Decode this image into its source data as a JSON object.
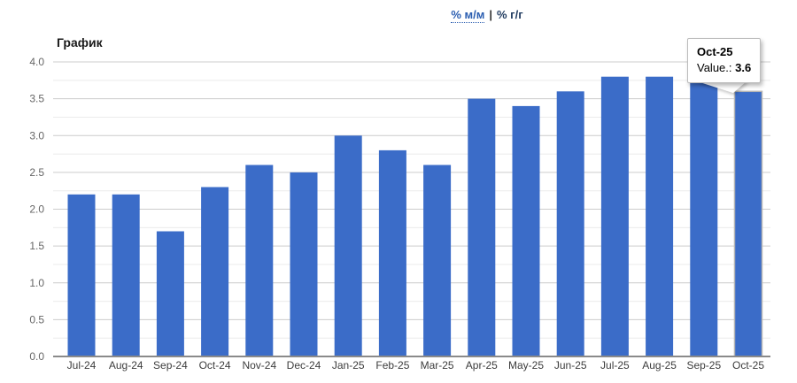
{
  "header": {
    "tabs": [
      {
        "label": "% м/м",
        "active": false
      },
      {
        "label": "% г/г",
        "active": true
      }
    ],
    "separator": "|"
  },
  "chart": {
    "title": "График"
  },
  "tooltip": {
    "title": "Oct-25",
    "label": "Value.:",
    "value": "3.6"
  },
  "colors": {
    "bar_blue": "#3b6cc8",
    "link_blue": "#2a5db0",
    "active_tab": "#1f3a5f",
    "major_grid": "#cccccc",
    "minor_grid": "#ebebeb",
    "axis_line": "#8a8a8a",
    "y_label": "#666666",
    "x_label": "#3c3c3c"
  },
  "chart_data": {
    "type": "bar",
    "title": "График",
    "xlabel": "",
    "ylabel": "",
    "categories": [
      "Jul-24",
      "Aug-24",
      "Sep-24",
      "Oct-24",
      "Nov-24",
      "Dec-24",
      "Jan-25",
      "Feb-25",
      "Mar-25",
      "Apr-25",
      "May-25",
      "Jun-25",
      "Jul-25",
      "Aug-25",
      "Sep-25",
      "Oct-25"
    ],
    "values": [
      2.2,
      2.2,
      1.7,
      2.3,
      2.6,
      2.5,
      3.0,
      2.8,
      2.6,
      3.5,
      3.4,
      3.6,
      3.8,
      3.8,
      3.8,
      3.6
    ],
    "ylim": [
      0,
      4.0
    ],
    "y_ticks": [
      "0.0",
      "0.5",
      "1.0",
      "1.5",
      "2.0",
      "2.5",
      "3.0",
      "3.5",
      "4.0"
    ],
    "y_tick_step": 0.5,
    "y_minor_step": 0.25,
    "grid": true,
    "legend": "none",
    "bar_color": "#3b6cc8",
    "hovered_index": 15,
    "hover_tooltip": {
      "category": "Oct-25",
      "value": 3.6
    }
  }
}
